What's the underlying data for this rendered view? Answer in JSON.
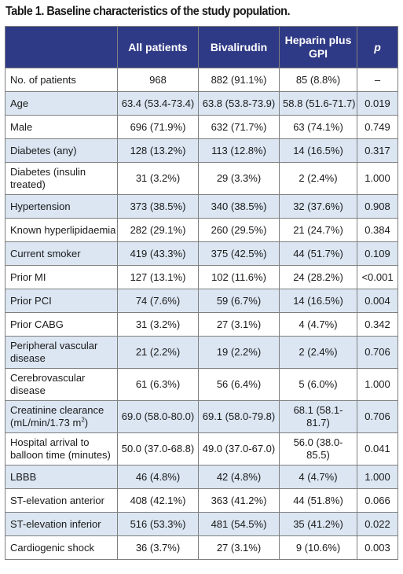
{
  "title": "Table 1. Baseline characteristics of the study population.",
  "headers": [
    "",
    "All patients",
    "Bivalirudin",
    "Heparin plus GPI",
    "p"
  ],
  "rows": [
    [
      "No. of patients",
      "968",
      "882 (91.1%)",
      "85 (8.8%)",
      "–"
    ],
    [
      "Age",
      "63.4 (53.4-73.4)",
      "63.8 (53.8-73.9)",
      "58.8 (51.6-71.7)",
      "0.019"
    ],
    [
      "Male",
      "696 (71.9%)",
      "632 (71.7%)",
      "63 (74.1%)",
      "0.749"
    ],
    [
      "Diabetes (any)",
      "128 (13.2%)",
      "113 (12.8%)",
      "14 (16.5%)",
      "0.317"
    ],
    [
      "Diabetes (insulin treated)",
      "31 (3.2%)",
      "29 (3.3%)",
      "2 (2.4%)",
      "1.000"
    ],
    [
      "Hypertension",
      "373 (38.5%)",
      "340 (38.5%)",
      "32 (37.6%)",
      "0.908"
    ],
    [
      "Known hyperlipidaemia",
      "282 (29.1%)",
      "260 (29.5%)",
      "21 (24.7%)",
      "0.384"
    ],
    [
      "Current smoker",
      "419 (43.3%)",
      "375 (42.5%)",
      "44 (51.7%)",
      "0.109"
    ],
    [
      "Prior MI",
      "127 (13.1%)",
      "102 (11.6%)",
      "24 (28.2%)",
      "<0.001"
    ],
    [
      "Prior PCI",
      "74 (7.6%)",
      "59 (6.7%)",
      "14 (16.5%)",
      "0.004"
    ],
    [
      "Prior CABG",
      "31 (3.2%)",
      "27 (3.1%)",
      "4 (4.7%)",
      "0.342"
    ],
    [
      "Peripheral vascular disease",
      "21 (2.2%)",
      "19 (2.2%)",
      "2 (2.4%)",
      "0.706"
    ],
    [
      "Cerebrovascular disease",
      "61 (6.3%)",
      "56 (6.4%)",
      "5 (6.0%)",
      "1.000"
    ],
    [
      "Creatinine clearance (mL/min/1.73 m",
      "69.0 (58.0-80.0)",
      "69.1 (58.0-79.8)",
      "68.1 (58.1-81.7)",
      "0.706"
    ],
    [
      "Hospital arrival to balloon time (minutes)",
      "50.0 (37.0-68.8)",
      "49.0 (37.0-67.0)",
      "56.0 (38.0-85.5)",
      "0.041"
    ],
    [
      "LBBB",
      "46 (4.8%)",
      "42 (4.8%)",
      "4 (4.7%)",
      "1.000"
    ],
    [
      "ST-elevation anterior",
      "408 (42.1%)",
      "363 (41.2%)",
      "44 (51.8%)",
      "0.066"
    ],
    [
      "ST-elevation inferior",
      "516 (53.3%)",
      "481 (54.5%)",
      "35 (41.2%)",
      "0.022"
    ],
    [
      "Cardiogenic shock",
      "36 (3.7%)",
      "27 (3.1%)",
      "9 (10.6%)",
      "0.003"
    ]
  ],
  "creatinine_suffix": {
    "sup": "2",
    "close": ")"
  },
  "colors": {
    "header_bg": "#2f3a86",
    "shade_bg": "#dbe6f2",
    "border": "#7f7f7f"
  }
}
